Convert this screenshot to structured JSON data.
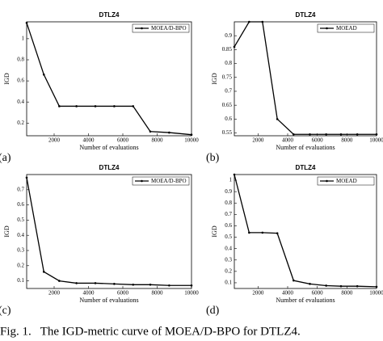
{
  "chart_data": [
    {
      "type": "line",
      "panel_label": "(a)",
      "title": "DTLZ4",
      "x_label": "Number of evaluations",
      "y_label": "IGD",
      "x": [
        400,
        1400,
        2300,
        3300,
        4400,
        5500,
        6600,
        7600,
        8700,
        10000
      ],
      "xlim": [
        400,
        10000
      ],
      "xticks": [
        2000,
        4000,
        6000,
        8000,
        10000
      ],
      "ylim": [
        0.08,
        1.16
      ],
      "yticks": [
        0.2,
        0.4,
        0.6,
        0.8,
        1
      ],
      "legend": "upper right",
      "series": [
        {
          "name": "MOEA/D-BPO",
          "color": "#000000",
          "values": [
            1.15,
            0.66,
            0.36,
            0.36,
            0.36,
            0.36,
            0.36,
            0.12,
            0.11,
            0.09
          ]
        }
      ]
    },
    {
      "type": "line",
      "panel_label": "(b)",
      "title": "DTLZ4",
      "x_label": "Number of evaluations",
      "y_label": "IGD",
      "x": [
        400,
        1400,
        2300,
        3300,
        4400,
        5500,
        6600,
        7600,
        8700,
        10000
      ],
      "xlim": [
        400,
        10000
      ],
      "xticks": [
        2000,
        4000,
        6000,
        8000,
        10000
      ],
      "ylim": [
        0.54,
        0.95
      ],
      "yticks": [
        0.55,
        0.6,
        0.65,
        0.7,
        0.75,
        0.8,
        0.85,
        0.9
      ],
      "legend": "upper right",
      "series": [
        {
          "name": "MOEAD",
          "color": "#000000",
          "values": [
            0.86,
            0.95,
            0.95,
            0.6,
            0.545,
            0.545,
            0.545,
            0.545,
            0.545,
            0.545
          ]
        }
      ]
    },
    {
      "type": "line",
      "panel_label": "(c)",
      "title": "DTLZ4",
      "x_label": "Number of evaluations",
      "y_label": "IGD",
      "x": [
        400,
        1400,
        2300,
        3300,
        4400,
        5500,
        6600,
        7600,
        8700,
        10000
      ],
      "xlim": [
        400,
        10000
      ],
      "xticks": [
        2000,
        4000,
        6000,
        8000,
        10000
      ],
      "ylim": [
        0.05,
        0.8
      ],
      "yticks": [
        0.1,
        0.2,
        0.3,
        0.4,
        0.5,
        0.6,
        0.7
      ],
      "legend": "upper right",
      "series": [
        {
          "name": "MOEA/D-BPO",
          "color": "#000000",
          "values": [
            0.78,
            0.16,
            0.1,
            0.085,
            0.085,
            0.08,
            0.075,
            0.075,
            0.07,
            0.07
          ]
        }
      ]
    },
    {
      "type": "line",
      "panel_label": "(d)",
      "title": "DTLZ4",
      "x_label": "Number of evaluations",
      "y_label": "IGD",
      "x": [
        400,
        1400,
        2300,
        3300,
        4400,
        5500,
        6600,
        7600,
        8700,
        10000
      ],
      "xlim": [
        400,
        10000
      ],
      "xticks": [
        2000,
        4000,
        6000,
        8000,
        10000
      ],
      "ylim": [
        0.05,
        1.05
      ],
      "yticks": [
        0.1,
        0.2,
        0.3,
        0.4,
        0.5,
        0.6,
        0.7,
        0.8,
        0.9,
        1
      ],
      "legend": "upper right",
      "series": [
        {
          "name": "MOEAD",
          "color": "#000000",
          "values": [
            1.05,
            0.54,
            0.54,
            0.535,
            0.12,
            0.09,
            0.075,
            0.07,
            0.07,
            0.065
          ]
        }
      ]
    }
  ],
  "caption": "Fig. 1.   The IGD-metric curve of MOEA/D-BPO for DTLZ4."
}
